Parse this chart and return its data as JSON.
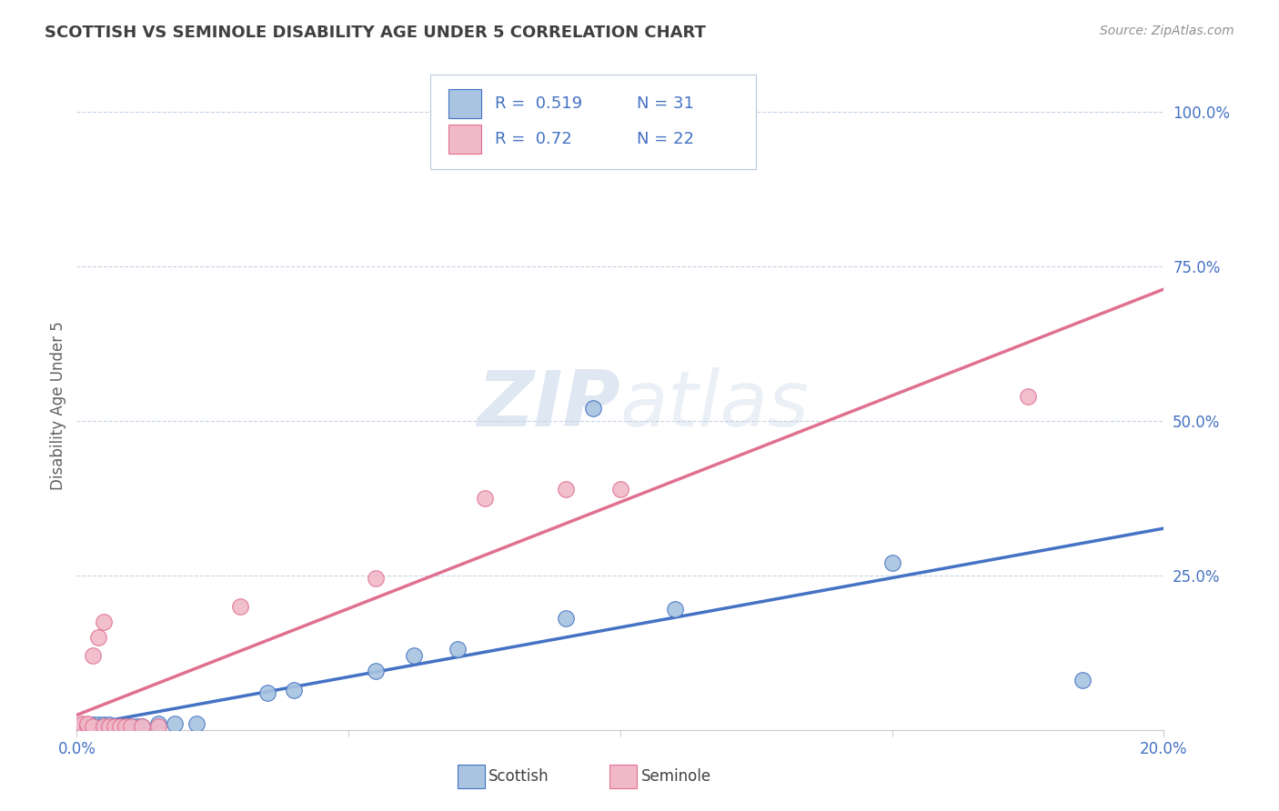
{
  "title": "SCOTTISH VS SEMINOLE DISABILITY AGE UNDER 5 CORRELATION CHART",
  "source": "Source: ZipAtlas.com",
  "ylabel": "Disability Age Under 5",
  "xlim": [
    0.0,
    0.2
  ],
  "ylim": [
    0.0,
    1.05
  ],
  "xticks": [
    0.0,
    0.05,
    0.1,
    0.15,
    0.2
  ],
  "xticklabels": [
    "0.0%",
    "",
    "",
    "",
    "20.0%"
  ],
  "ytick_positions": [
    0.0,
    0.25,
    0.5,
    0.75,
    1.0
  ],
  "ytick_labels": [
    "",
    "25.0%",
    "50.0%",
    "75.0%",
    "100.0%"
  ],
  "scottish_R": 0.519,
  "scottish_N": 31,
  "seminole_R": 0.72,
  "seminole_N": 22,
  "scottish_color": "#a8c4e0",
  "seminole_color": "#f0b8c8",
  "scottish_line_color": "#4472c4",
  "seminole_line_color": "#e07090",
  "background_color": "#ffffff",
  "grid_color": "#c8d4e8",
  "title_color": "#404040",
  "axis_label_color": "#4472c4",
  "watermark": "ZIPatlas",
  "scottish_x": [
    0.001,
    0.001,
    0.002,
    0.002,
    0.003,
    0.003,
    0.004,
    0.004,
    0.005,
    0.005,
    0.006,
    0.006,
    0.007,
    0.008,
    0.009,
    0.01,
    0.011,
    0.012,
    0.015,
    0.018,
    0.022,
    0.035,
    0.04,
    0.055,
    0.062,
    0.07,
    0.09,
    0.095,
    0.11,
    0.15,
    0.185
  ],
  "scottish_y": [
    0.005,
    0.008,
    0.005,
    0.008,
    0.005,
    0.008,
    0.005,
    0.008,
    0.005,
    0.008,
    0.005,
    0.008,
    0.005,
    0.005,
    0.005,
    0.005,
    0.005,
    0.005,
    0.01,
    0.01,
    0.01,
    0.06,
    0.065,
    0.095,
    0.12,
    0.13,
    0.18,
    0.52,
    0.195,
    0.27,
    0.08
  ],
  "seminole_x": [
    0.001,
    0.001,
    0.002,
    0.002,
    0.003,
    0.003,
    0.004,
    0.005,
    0.005,
    0.006,
    0.007,
    0.008,
    0.009,
    0.01,
    0.012,
    0.015,
    0.03,
    0.055,
    0.075,
    0.09,
    0.1,
    0.175
  ],
  "seminole_y": [
    0.005,
    0.01,
    0.005,
    0.01,
    0.005,
    0.12,
    0.15,
    0.005,
    0.175,
    0.005,
    0.005,
    0.005,
    0.005,
    0.005,
    0.005,
    0.005,
    0.2,
    0.245,
    0.375,
    0.39,
    0.39,
    0.54
  ]
}
